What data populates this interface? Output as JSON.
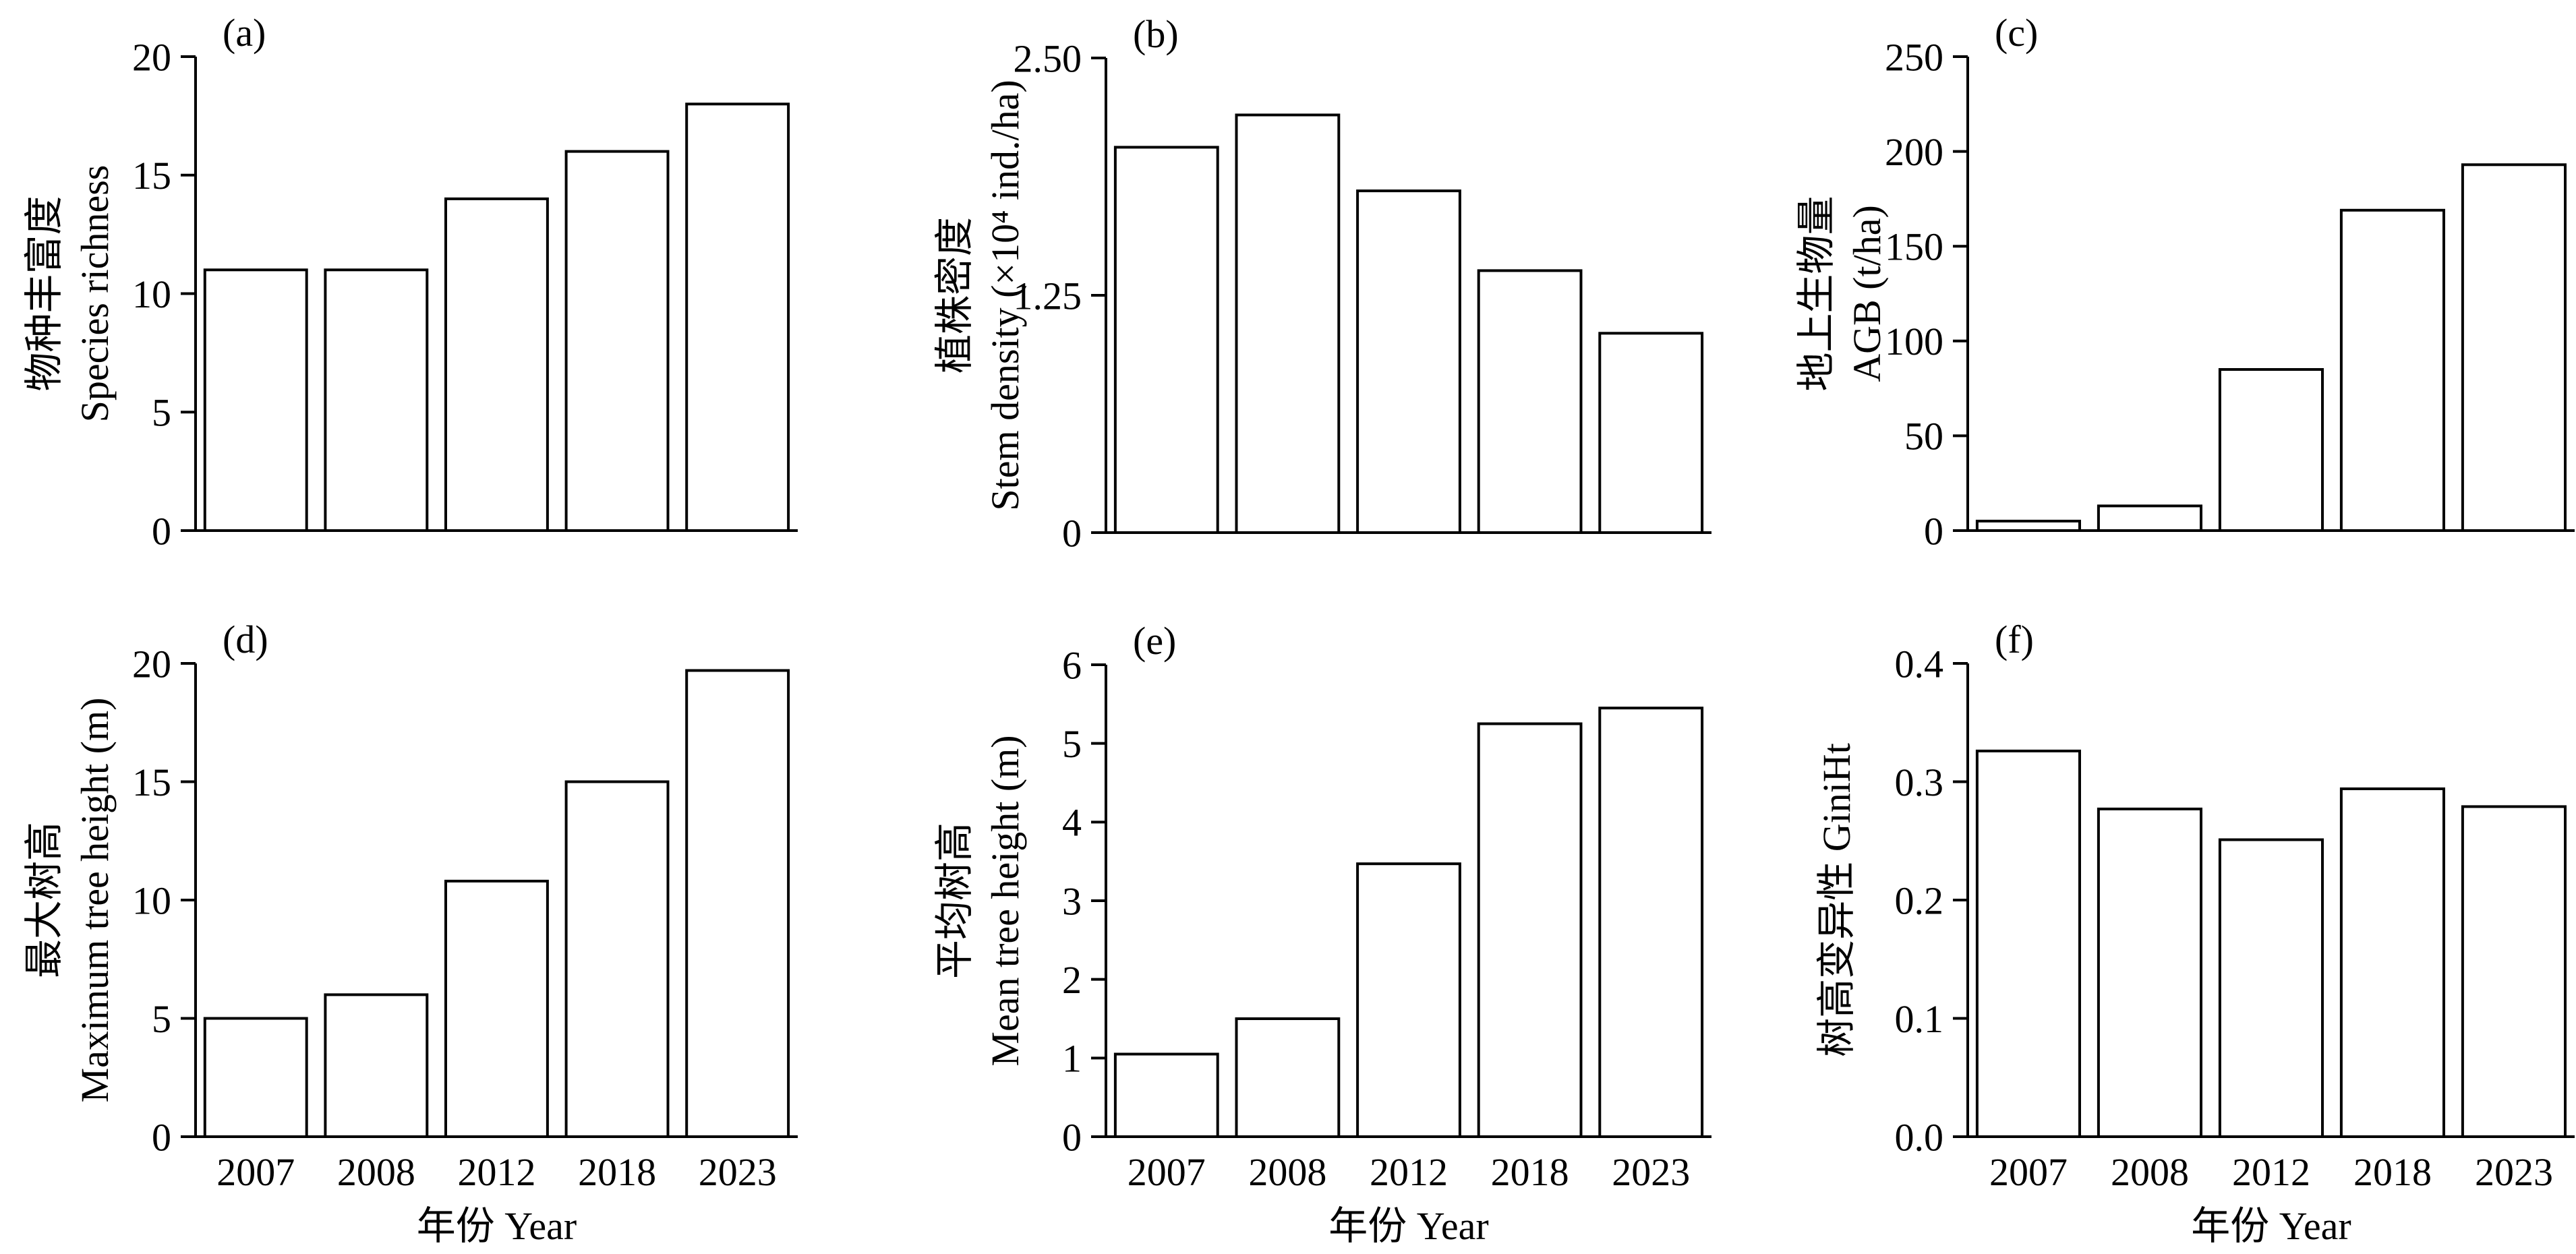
{
  "style": {
    "bar_fill": "#ffffff",
    "bar_stroke": "#000000",
    "axis_color": "#000000"
  },
  "chart_data": [
    {
      "panel": "(a)",
      "type": "bar",
      "categories": [
        "2007",
        "2008",
        "2012",
        "2018",
        "2023"
      ],
      "values": [
        11,
        11,
        14,
        16,
        18
      ],
      "ylabel_cn": "物种丰富度",
      "ylabel_en": "Species richness",
      "xlabel": "",
      "ylim": [
        0,
        20
      ],
      "yticks": [
        "0",
        "5",
        "10",
        "15",
        "20"
      ],
      "show_xticklabels": false,
      "grid": false,
      "legend": "none"
    },
    {
      "panel": "(b)",
      "type": "bar",
      "categories": [
        "2007",
        "2008",
        "2012",
        "2018",
        "2023"
      ],
      "values": [
        2.03,
        2.2,
        1.8,
        1.38,
        1.05
      ],
      "ylabel_cn": "植株密度",
      "ylabel_en": "Stem density (×10⁴ ind./ha)",
      "xlabel": "",
      "ylim": [
        0,
        2.5
      ],
      "yticks": [
        "0",
        "1.25",
        "2.50"
      ],
      "show_xticklabels": false,
      "grid": false,
      "legend": "none"
    },
    {
      "panel": "(c)",
      "type": "bar",
      "categories": [
        "2007",
        "2008",
        "2012",
        "2018",
        "2023"
      ],
      "values": [
        5,
        13,
        85,
        169,
        193
      ],
      "ylabel_cn": "地上生物量",
      "ylabel_en": "AGB (t/ha)",
      "xlabel": "",
      "ylim": [
        0,
        250
      ],
      "yticks": [
        "0",
        "50",
        "100",
        "150",
        "200",
        "250"
      ],
      "show_xticklabels": false,
      "grid": false,
      "legend": "none"
    },
    {
      "panel": "(d)",
      "type": "bar",
      "categories": [
        "2007",
        "2008",
        "2012",
        "2018",
        "2023"
      ],
      "values": [
        5,
        6,
        10.8,
        15,
        19.7
      ],
      "ylabel_cn": "最大树高",
      "ylabel_en": "Maximum tree height (m)",
      "xlabel": "年份 Year",
      "ylim": [
        0,
        20
      ],
      "yticks": [
        "0",
        "5",
        "10",
        "15",
        "20"
      ],
      "show_xticklabels": true,
      "grid": false,
      "legend": "none"
    },
    {
      "panel": "(e)",
      "type": "bar",
      "categories": [
        "2007",
        "2008",
        "2012",
        "2018",
        "2023"
      ],
      "values": [
        1.05,
        1.5,
        3.47,
        5.25,
        5.45
      ],
      "ylabel_cn": "平均树高",
      "ylabel_en": "Mean tree height (m)",
      "xlabel": "年份 Year",
      "ylim": [
        0,
        6
      ],
      "yticks": [
        "0",
        "1",
        "2",
        "3",
        "4",
        "5",
        "6"
      ],
      "show_xticklabels": true,
      "grid": false,
      "legend": "none"
    },
    {
      "panel": "(f)",
      "type": "bar",
      "categories": [
        "2007",
        "2008",
        "2012",
        "2018",
        "2023"
      ],
      "values": [
        0.326,
        0.277,
        0.251,
        0.294,
        0.279
      ],
      "ylabel_cn": "",
      "ylabel_en": "树高变异性 GiniHt",
      "xlabel": "年份 Year",
      "ylim": [
        0,
        0.4
      ],
      "yticks": [
        "0.0",
        "0.1",
        "0.2",
        "0.3",
        "0.4"
      ],
      "show_xticklabels": true,
      "grid": false,
      "legend": "none"
    }
  ]
}
